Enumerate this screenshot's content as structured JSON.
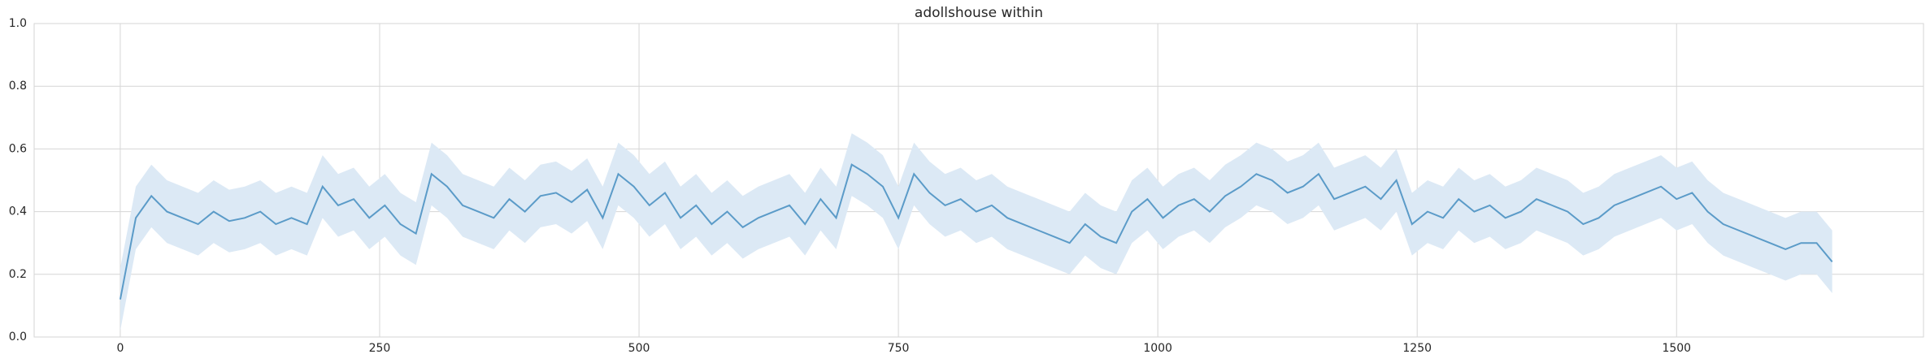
{
  "chart_data": {
    "type": "line",
    "title": "adollshouse within",
    "x": [
      0,
      15,
      30,
      45,
      60,
      75,
      90,
      105,
      120,
      135,
      150,
      165,
      180,
      195,
      210,
      225,
      240,
      255,
      270,
      285,
      300,
      315,
      330,
      345,
      360,
      375,
      390,
      405,
      420,
      435,
      450,
      465,
      480,
      495,
      510,
      525,
      540,
      555,
      570,
      585,
      600,
      615,
      630,
      645,
      660,
      675,
      690,
      705,
      720,
      735,
      750,
      765,
      780,
      795,
      810,
      825,
      840,
      855,
      870,
      885,
      900,
      915,
      930,
      945,
      960,
      975,
      990,
      1005,
      1020,
      1035,
      1050,
      1065,
      1080,
      1095,
      1110,
      1125,
      1140,
      1155,
      1170,
      1185,
      1200,
      1215,
      1230,
      1245,
      1260,
      1275,
      1290,
      1305,
      1320,
      1335,
      1350,
      1365,
      1380,
      1395,
      1410,
      1425,
      1440,
      1455,
      1470,
      1485,
      1500,
      1515,
      1530,
      1545,
      1560,
      1575,
      1590,
      1605,
      1620,
      1635,
      1650
    ],
    "series": [
      {
        "color": "#5b9bc8",
        "band_color": "#dce9f5",
        "values": [
          0.12,
          0.38,
          0.45,
          0.4,
          0.38,
          0.36,
          0.4,
          0.37,
          0.38,
          0.4,
          0.36,
          0.38,
          0.36,
          0.48,
          0.42,
          0.44,
          0.38,
          0.42,
          0.36,
          0.33,
          0.52,
          0.48,
          0.42,
          0.4,
          0.38,
          0.44,
          0.4,
          0.45,
          0.46,
          0.43,
          0.47,
          0.38,
          0.52,
          0.48,
          0.42,
          0.46,
          0.38,
          0.42,
          0.36,
          0.4,
          0.35,
          0.38,
          0.4,
          0.42,
          0.36,
          0.44,
          0.38,
          0.55,
          0.52,
          0.48,
          0.38,
          0.52,
          0.46,
          0.42,
          0.44,
          0.4,
          0.42,
          0.38,
          0.36,
          0.34,
          0.32,
          0.3,
          0.36,
          0.32,
          0.3,
          0.4,
          0.44,
          0.38,
          0.42,
          0.44,
          0.4,
          0.45,
          0.48,
          0.52,
          0.5,
          0.46,
          0.48,
          0.52,
          0.44,
          0.46,
          0.48,
          0.44,
          0.5,
          0.36,
          0.4,
          0.38,
          0.44,
          0.4,
          0.42,
          0.38,
          0.4,
          0.44,
          0.42,
          0.4,
          0.36,
          0.38,
          0.42,
          0.44,
          0.46,
          0.48,
          0.44,
          0.46,
          0.4,
          0.36,
          0.34,
          0.32,
          0.3,
          0.28,
          0.3,
          0.3,
          0.24
        ],
        "lower": [
          0.02,
          0.28,
          0.35,
          0.3,
          0.28,
          0.26,
          0.3,
          0.27,
          0.28,
          0.3,
          0.26,
          0.28,
          0.26,
          0.38,
          0.32,
          0.34,
          0.28,
          0.32,
          0.26,
          0.23,
          0.42,
          0.38,
          0.32,
          0.3,
          0.28,
          0.34,
          0.3,
          0.35,
          0.36,
          0.33,
          0.37,
          0.28,
          0.42,
          0.38,
          0.32,
          0.36,
          0.28,
          0.32,
          0.26,
          0.3,
          0.25,
          0.28,
          0.3,
          0.32,
          0.26,
          0.34,
          0.28,
          0.45,
          0.42,
          0.38,
          0.28,
          0.42,
          0.36,
          0.32,
          0.34,
          0.3,
          0.32,
          0.28,
          0.26,
          0.24,
          0.22,
          0.2,
          0.26,
          0.22,
          0.2,
          0.3,
          0.34,
          0.28,
          0.32,
          0.34,
          0.3,
          0.35,
          0.38,
          0.42,
          0.4,
          0.36,
          0.38,
          0.42,
          0.34,
          0.36,
          0.38,
          0.34,
          0.4,
          0.26,
          0.3,
          0.28,
          0.34,
          0.3,
          0.32,
          0.28,
          0.3,
          0.34,
          0.32,
          0.3,
          0.26,
          0.28,
          0.32,
          0.34,
          0.36,
          0.38,
          0.34,
          0.36,
          0.3,
          0.26,
          0.24,
          0.22,
          0.2,
          0.18,
          0.2,
          0.2,
          0.14
        ],
        "upper": [
          0.22,
          0.48,
          0.55,
          0.5,
          0.48,
          0.46,
          0.5,
          0.47,
          0.48,
          0.5,
          0.46,
          0.48,
          0.46,
          0.58,
          0.52,
          0.54,
          0.48,
          0.52,
          0.46,
          0.43,
          0.62,
          0.58,
          0.52,
          0.5,
          0.48,
          0.54,
          0.5,
          0.55,
          0.56,
          0.53,
          0.57,
          0.48,
          0.62,
          0.58,
          0.52,
          0.56,
          0.48,
          0.52,
          0.46,
          0.5,
          0.45,
          0.48,
          0.5,
          0.52,
          0.46,
          0.54,
          0.48,
          0.65,
          0.62,
          0.58,
          0.48,
          0.62,
          0.56,
          0.52,
          0.54,
          0.5,
          0.52,
          0.48,
          0.46,
          0.44,
          0.42,
          0.4,
          0.46,
          0.42,
          0.4,
          0.5,
          0.54,
          0.48,
          0.52,
          0.54,
          0.5,
          0.55,
          0.58,
          0.62,
          0.6,
          0.56,
          0.58,
          0.62,
          0.54,
          0.56,
          0.58,
          0.54,
          0.6,
          0.46,
          0.5,
          0.48,
          0.54,
          0.5,
          0.52,
          0.48,
          0.5,
          0.54,
          0.52,
          0.5,
          0.46,
          0.48,
          0.52,
          0.54,
          0.56,
          0.58,
          0.54,
          0.56,
          0.5,
          0.46,
          0.44,
          0.42,
          0.4,
          0.38,
          0.4,
          0.4,
          0.34
        ]
      }
    ],
    "xlim": [
      -83,
      1738
    ],
    "xticks": [
      0,
      250,
      500,
      750,
      1000,
      1250,
      1500
    ],
    "ylim": [
      0,
      1
    ],
    "yticks": [
      {
        "value": 0,
        "label": "0.0"
      },
      0.2,
      0.4,
      0.6,
      0.8,
      {
        "value": 1,
        "label": "1.0"
      }
    ],
    "grid": true
  }
}
